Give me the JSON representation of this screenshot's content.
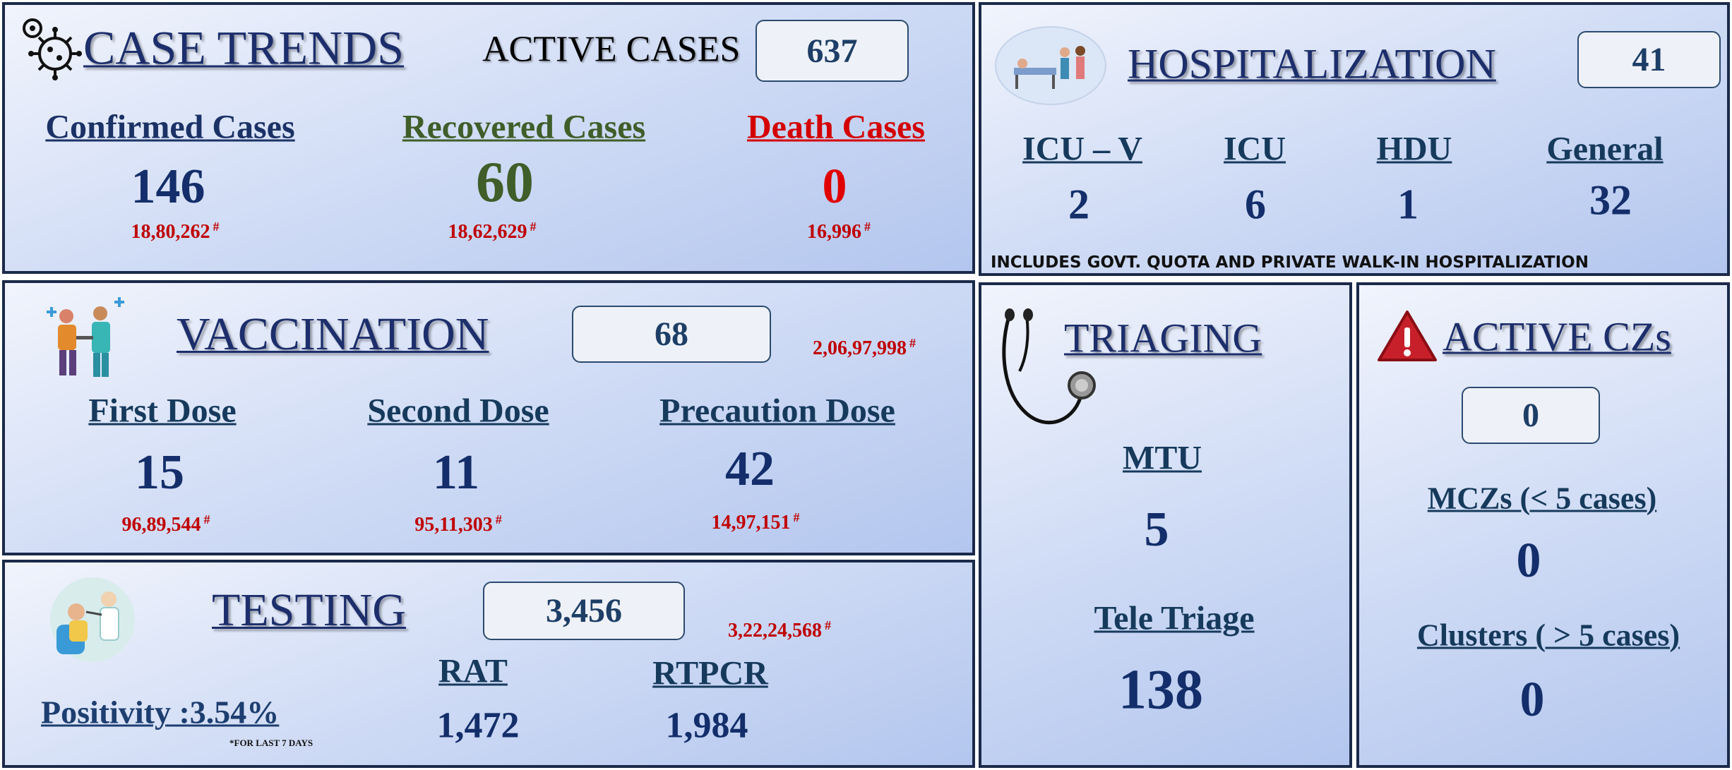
{
  "footnote_mark": "#",
  "case_trends": {
    "title": "CASE TRENDS",
    "active_label": "ACTIVE CASES",
    "active_value": "637",
    "items": [
      {
        "label": "Confirmed Cases",
        "value": "146",
        "cumulative": "18,80,262"
      },
      {
        "label": "Recovered Cases",
        "value": "60",
        "cumulative": "18,62,629"
      },
      {
        "label": "Death Cases",
        "value": "0",
        "cumulative": "16,996"
      }
    ]
  },
  "hospitalization": {
    "title": "HOSPITALIZATION",
    "total": "41",
    "items": [
      {
        "label": "ICU – V",
        "value": "2"
      },
      {
        "label": "ICU",
        "value": "6"
      },
      {
        "label": "HDU",
        "value": "1"
      },
      {
        "label": "General",
        "value": "32"
      }
    ],
    "note": "INCLUDES GOVT. QUOTA AND PRIVATE WALK-IN HOSPITALIZATION"
  },
  "vaccination": {
    "title": "VACCINATION",
    "total": "68",
    "cumulative": "2,06,97,998",
    "items": [
      {
        "label": "First Dose",
        "value": "15",
        "cumulative": "96,89,544"
      },
      {
        "label": "Second Dose",
        "value": "11",
        "cumulative": "95,11,303"
      },
      {
        "label": "Precaution Dose",
        "value": "42",
        "cumulative": "14,97,151"
      }
    ]
  },
  "testing": {
    "title": "TESTING",
    "total": "3,456",
    "cumulative": "3,22,24,568",
    "positivity": "Positivity :3.54%",
    "positivity_note": "*FOR LAST 7 DAYS",
    "items": [
      {
        "label": "RAT",
        "value": "1,472"
      },
      {
        "label": "RTPCR",
        "value": "1,984"
      }
    ]
  },
  "triaging": {
    "title": "TRIAGING",
    "items": [
      {
        "label": "MTU",
        "value": "5"
      },
      {
        "label": "Tele Triage",
        "value": "138"
      }
    ]
  },
  "active_czs": {
    "title": "ACTIVE CZs",
    "total": "0",
    "items": [
      {
        "label": "MCZs (< 5 cases)",
        "value": "0"
      },
      {
        "label": "Clusters ( > 5 cases)",
        "value": "0"
      }
    ]
  }
}
